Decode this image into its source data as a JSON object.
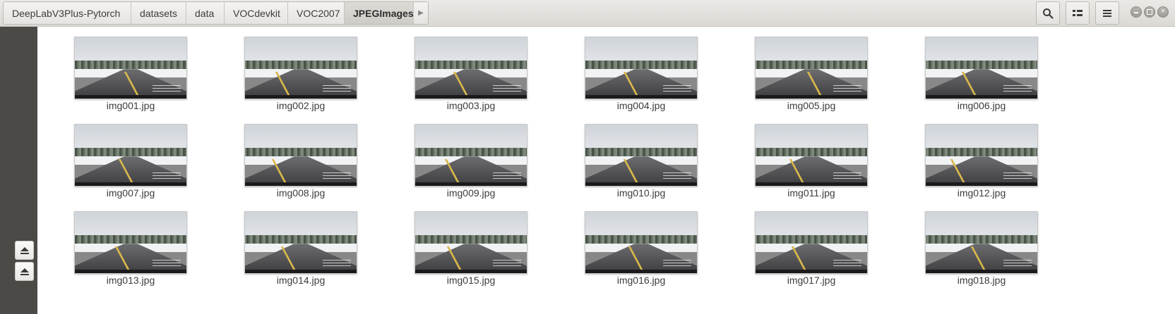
{
  "breadcrumb": [
    "DeepLabV3Plus-Pytorch",
    "datasets",
    "data",
    "VOCdevkit",
    "VOC2007",
    "JPEGImages"
  ],
  "files": [
    "img001.jpg",
    "img002.jpg",
    "img003.jpg",
    "img004.jpg",
    "img005.jpg",
    "img006.jpg",
    "img007.jpg",
    "img008.jpg",
    "img009.jpg",
    "img010.jpg",
    "img011.jpg",
    "img012.jpg",
    "img013.jpg",
    "img014.jpg",
    "img015.jpg",
    "img016.jpg",
    "img017.jpg",
    "img018.jpg"
  ],
  "icons": {
    "search": "search-icon",
    "view": "view-options-icon",
    "menu": "hamburger-menu-icon",
    "eject": "eject-icon"
  },
  "colors": {
    "sidebar": "#4c4a46",
    "headerbar": "#e2e0dc"
  }
}
